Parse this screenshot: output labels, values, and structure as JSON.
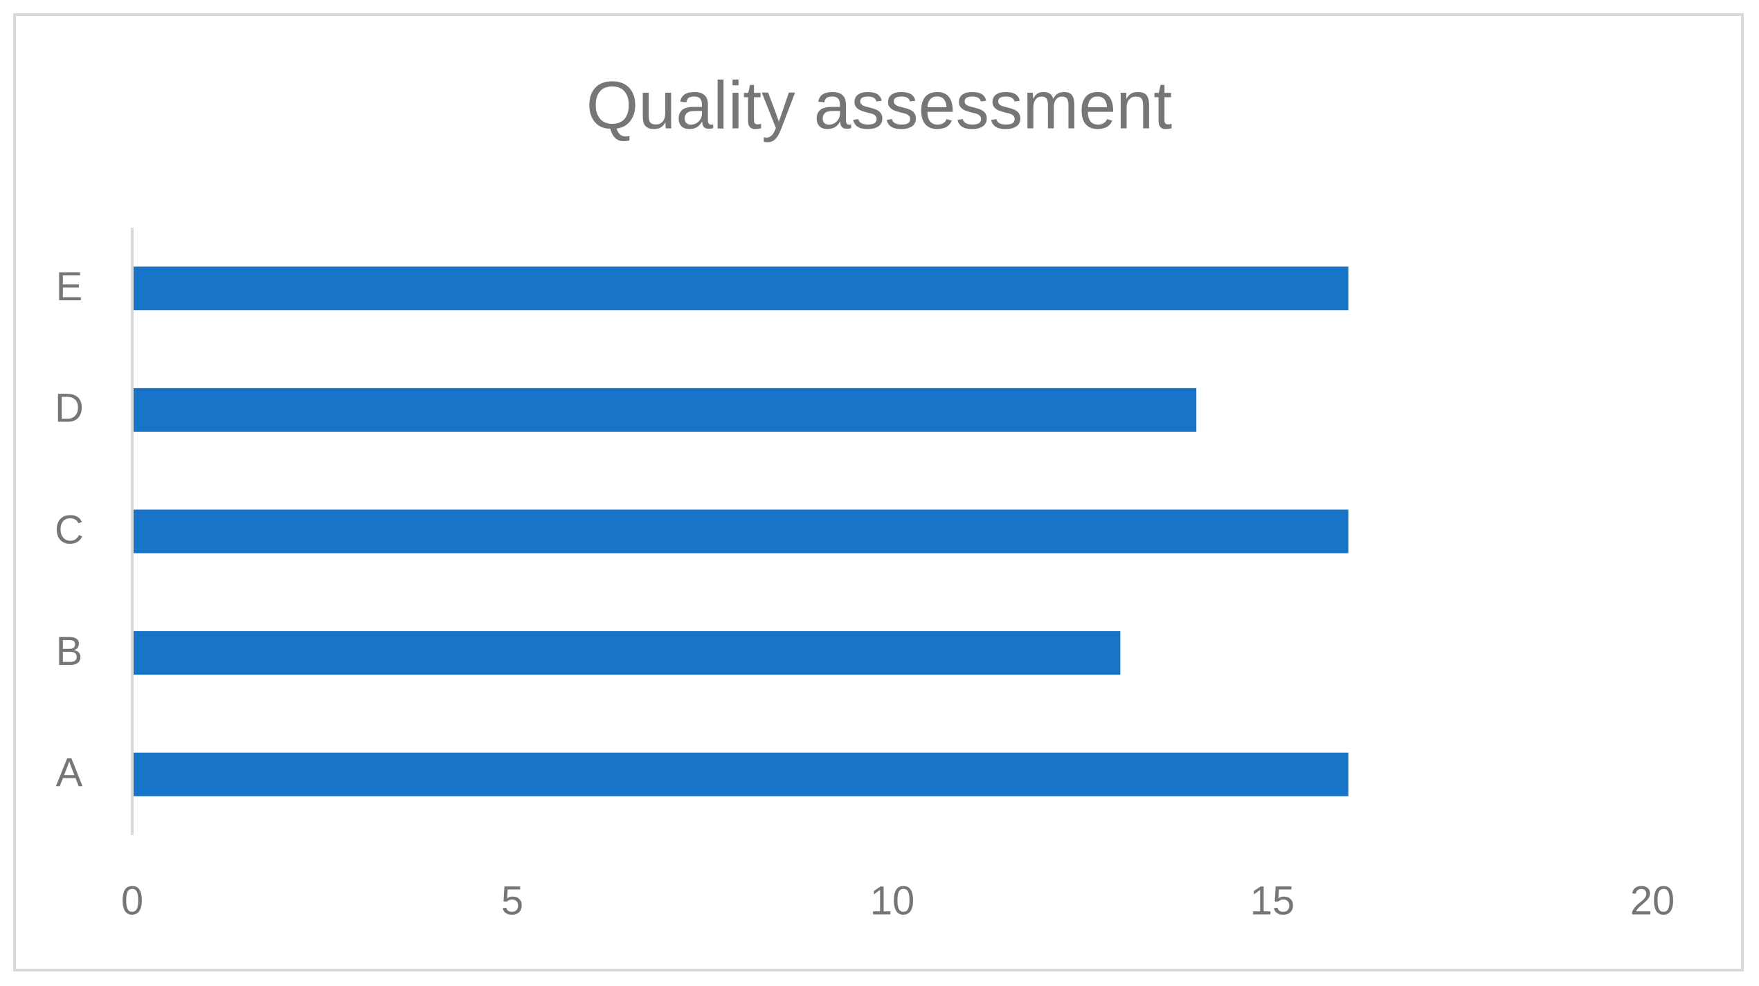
{
  "chart_data": {
    "type": "barh",
    "title": "Quality assessment",
    "categories": [
      "A",
      "B",
      "C",
      "D",
      "E"
    ],
    "values": [
      16,
      13,
      16,
      14,
      16
    ],
    "color": "#1874c8",
    "xlim": [
      0,
      20
    ],
    "xticks": [
      0,
      5,
      10,
      15,
      20
    ],
    "grid": false
  }
}
